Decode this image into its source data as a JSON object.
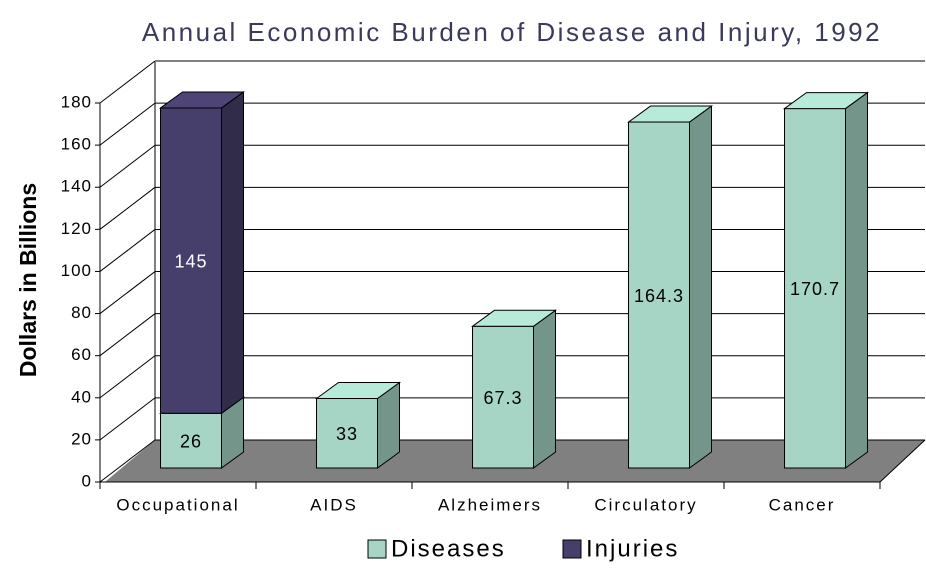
{
  "chart_data": {
    "type": "bar3d_stacked",
    "title": "Annual Economic Burden of Disease and Injury, 1992",
    "y_label": "Dollars in Billions",
    "categories": [
      "Occupational",
      "AIDS",
      "Alzheimers",
      "Circulatory",
      "Cancer"
    ],
    "series": [
      {
        "name": "Diseases",
        "color": "#a6d5c5",
        "values": [
          26,
          33,
          67.3,
          164.3,
          170.7
        ]
      },
      {
        "name": "Injuries",
        "color": "#473f6b",
        "values": [
          145,
          null,
          null,
          null,
          null
        ]
      }
    ],
    "ylim": [
      0,
      180
    ],
    "yticks": [
      0,
      20,
      40,
      60,
      80,
      100,
      120,
      140,
      160,
      180
    ],
    "grid": true,
    "legend": "bottom"
  }
}
